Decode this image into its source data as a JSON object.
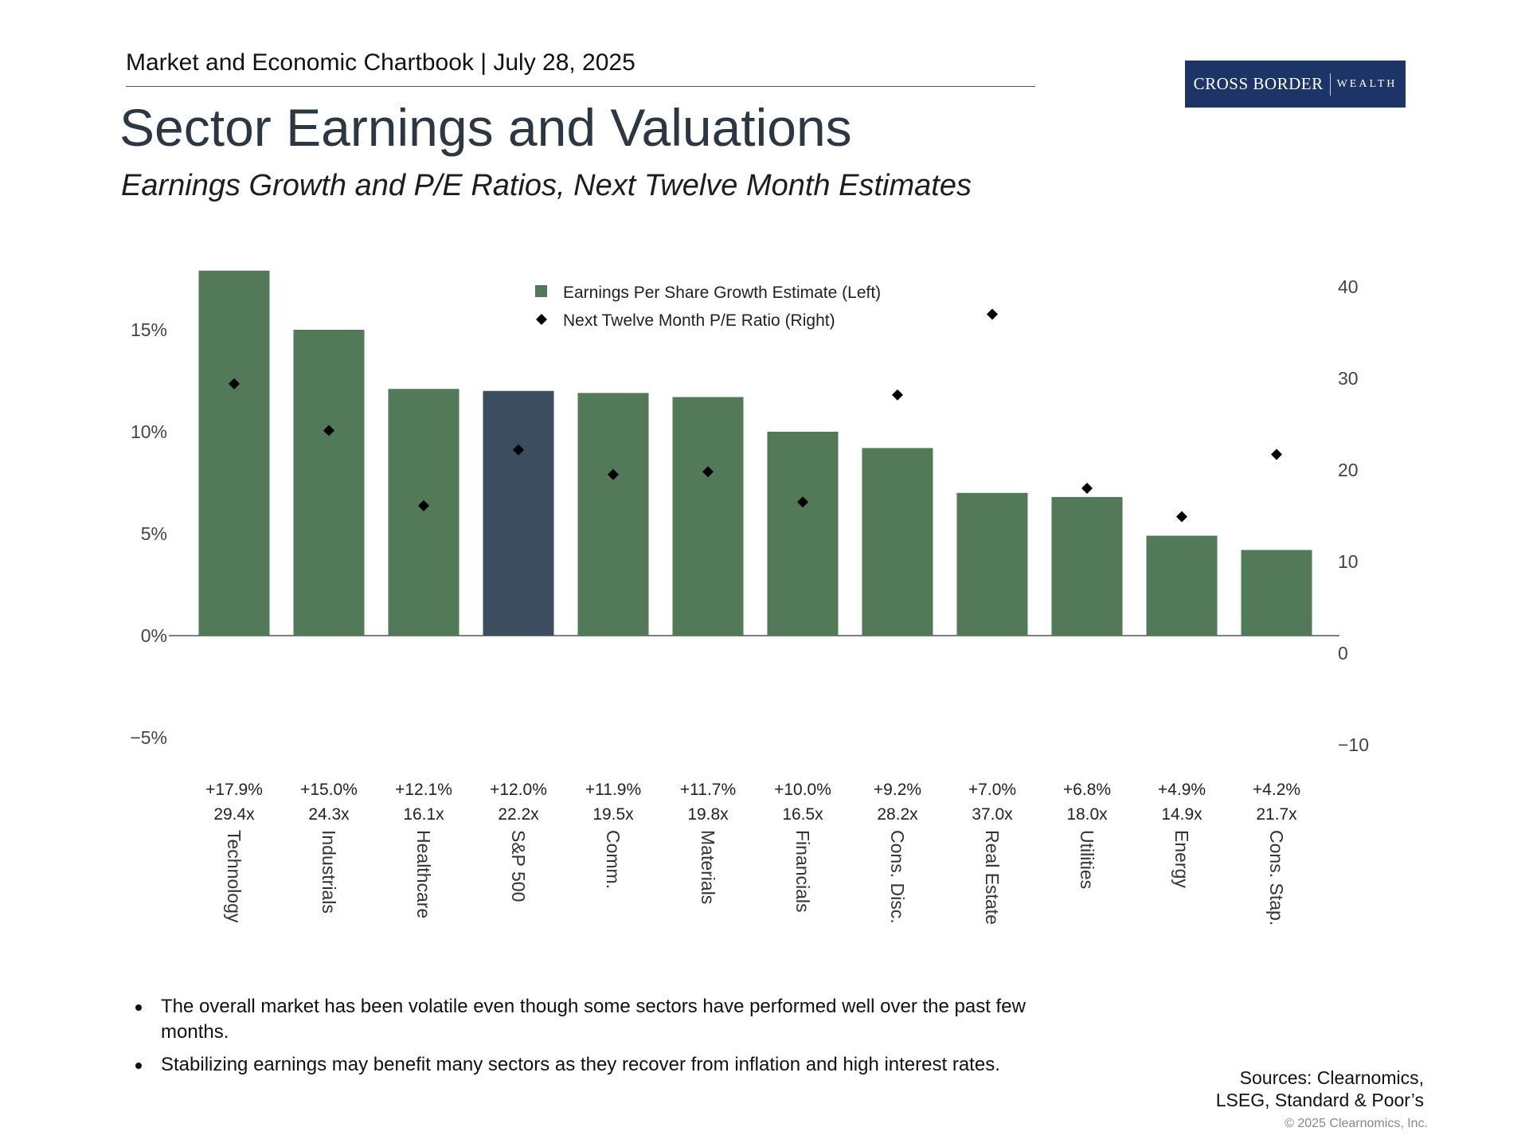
{
  "header": {
    "chartbook": "Market and Economic Chartbook | July 28, 2025"
  },
  "logo": {
    "line1": "CROSS BORDER",
    "line2": "WEALTH",
    "color": "#1c3566"
  },
  "title": "Sector Earnings and Valuations",
  "subtitle": "Earnings Growth and P/E Ratios, Next Twelve Month Estimates",
  "colors": {
    "bar": "#527a58",
    "highlight": "#3b4d5e",
    "marker": "#000000",
    "axis": "#555555"
  },
  "chart_data": {
    "type": "bar",
    "categories": [
      "Technology",
      "Industrials",
      "Healthcare",
      "S&P 500",
      "Comm.",
      "Materials",
      "Financials",
      "Cons. Disc.",
      "Real Estate",
      "Utilities",
      "Energy",
      "Cons. Stap."
    ],
    "highlight_category": "S&P 500",
    "series": [
      {
        "name": "Earnings Per Share Growth Estimate (Left)",
        "axis": "left",
        "type": "bar",
        "values": [
          17.9,
          15.0,
          12.1,
          12.0,
          11.9,
          11.7,
          10.0,
          9.2,
          7.0,
          6.8,
          4.9,
          4.2
        ]
      },
      {
        "name": "Next Twelve Month P/E Ratio (Right)",
        "axis": "right",
        "type": "scatter",
        "values": [
          29.4,
          24.3,
          16.1,
          22.2,
          19.5,
          19.8,
          16.5,
          28.2,
          37.0,
          18.0,
          14.9,
          21.7
        ]
      }
    ],
    "value_labels": [
      "+17.9%",
      "+15.0%",
      "+12.1%",
      "+12.0%",
      "+11.9%",
      "+11.7%",
      "+10.0%",
      "+9.2%",
      "+7.0%",
      "+6.8%",
      "+4.9%",
      "+4.2%"
    ],
    "pe_labels": [
      "29.4x",
      "24.3x",
      "16.1x",
      "22.2x",
      "19.5x",
      "19.8x",
      "16.5x",
      "28.2x",
      "37.0x",
      "18.0x",
      "14.9x",
      "21.7x"
    ],
    "left_axis": {
      "ylim": [
        -5,
        18
      ],
      "ticks": [
        -5,
        0,
        5,
        10,
        15
      ],
      "tick_labels": [
        "−5%",
        "0%",
        "5%",
        "10%",
        "15%"
      ]
    },
    "right_axis": {
      "ylim": [
        -10,
        40
      ],
      "ticks": [
        -10,
        0,
        10,
        20,
        30,
        40
      ],
      "tick_labels": [
        "−10",
        "0",
        "10",
        "20",
        "30",
        "40"
      ]
    },
    "legend": {
      "placement": "top-center",
      "entries": [
        "Earnings Per Share Growth Estimate (Left)",
        "Next Twelve Month P/E Ratio (Right)"
      ]
    },
    "grid": false
  },
  "bullets": [
    "The overall market has been volatile even though some sectors have performed well over the past few months.",
    "Stabilizing earnings may benefit many sectors as they recover from inflation and high interest rates."
  ],
  "sources": {
    "line1": "Sources: Clearnomics,",
    "line2": "LSEG, Standard & Poor’s"
  },
  "copyright": "© 2025 Clearnomics, Inc."
}
